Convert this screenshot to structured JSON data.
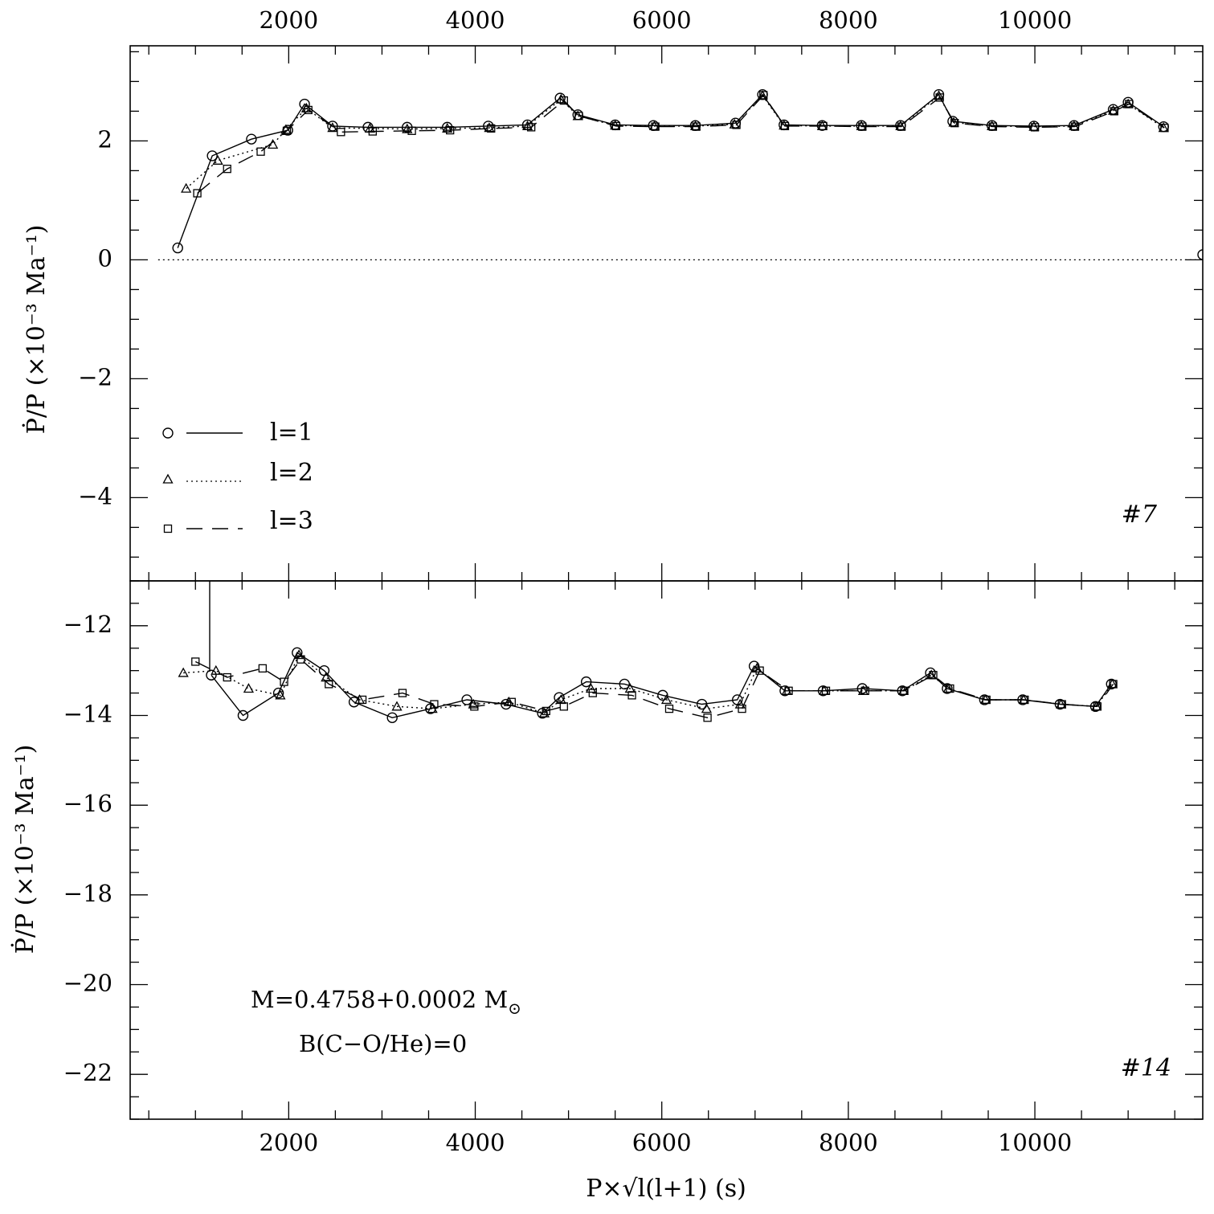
{
  "chart_data": [
    {
      "type": "line",
      "panel": "top",
      "ylabel": "Ṗ/P (×10⁻³ Ma⁻¹)",
      "xlabel": "P×√l(l+1) (s)",
      "xlim": [
        300,
        11800
      ],
      "ylim": [
        -5.4,
        3.6
      ],
      "x_ticks": [
        2000,
        4000,
        6000,
        8000,
        10000
      ],
      "x_tick_labels": [
        "2000",
        "4000",
        "6000",
        "8000",
        "10000"
      ],
      "y_ticks": [
        -4,
        -2,
        0,
        2
      ],
      "y_tick_labels": [
        "−4",
        "−2",
        "0",
        "2"
      ],
      "panel_label": "#7",
      "reference_line": {
        "y": 0,
        "style": "dotted"
      },
      "legend": [
        {
          "marker": "circle",
          "line": "solid",
          "label": "l=1"
        },
        {
          "marker": "triangle",
          "line": "dotted",
          "label": "l=2"
        },
        {
          "marker": "square",
          "line": "dashed",
          "label": "l=3"
        }
      ],
      "series": [
        {
          "name": "l=1",
          "marker": "circle",
          "line": "solid",
          "x": [
            810,
            1180,
            1600,
            1990,
            2170,
            2470,
            2850,
            3270,
            3700,
            4140,
            4560,
            4910,
            5100,
            5500,
            5910,
            6360,
            6790,
            7080,
            7310,
            7720,
            8140,
            8560,
            8970,
            9120,
            9540,
            9990,
            10420,
            10840,
            11000,
            11380
          ],
          "y": [
            0.2,
            1.75,
            2.03,
            2.18,
            2.62,
            2.25,
            2.23,
            2.23,
            2.23,
            2.25,
            2.27,
            2.72,
            2.44,
            2.27,
            2.26,
            2.26,
            2.3,
            2.78,
            2.27,
            2.26,
            2.26,
            2.26,
            2.78,
            2.33,
            2.26,
            2.25,
            2.26,
            2.53,
            2.65,
            2.24
          ]
        },
        {
          "name": "l=2",
          "marker": "triangle",
          "line": "dotted",
          "x": [
            900,
            1240,
            1830,
            1970,
            2190,
            2470,
            2870,
            3270,
            3700,
            4150,
            4560,
            4920,
            5100,
            5500,
            5920,
            6360,
            6780,
            7080,
            7310,
            7720,
            8140,
            8560,
            8970,
            9130,
            9540,
            9990,
            10420,
            10840,
            11000,
            11380
          ],
          "y": [
            1.2,
            1.67,
            1.94,
            2.19,
            2.55,
            2.22,
            2.21,
            2.2,
            2.21,
            2.22,
            2.25,
            2.7,
            2.42,
            2.26,
            2.25,
            2.25,
            2.28,
            2.76,
            2.26,
            2.25,
            2.25,
            2.25,
            2.76,
            2.31,
            2.25,
            2.24,
            2.25,
            2.51,
            2.62,
            2.22
          ]
        },
        {
          "name": "l=3",
          "marker": "square",
          "line": "dashed",
          "x": [
            1020,
            1340,
            1700,
            1980,
            2210,
            2560,
            2900,
            3320,
            3730,
            4170,
            4600,
            4950,
            5110,
            5510,
            5930,
            6370,
            6800,
            7090,
            7320,
            7730,
            8150,
            8570,
            8980,
            9140,
            9550,
            10000,
            10430,
            10850,
            11010,
            11390
          ],
          "y": [
            1.12,
            1.53,
            1.82,
            2.17,
            2.52,
            2.15,
            2.16,
            2.17,
            2.18,
            2.21,
            2.23,
            2.68,
            2.42,
            2.25,
            2.24,
            2.24,
            2.27,
            2.77,
            2.25,
            2.25,
            2.24,
            2.24,
            2.73,
            2.3,
            2.24,
            2.23,
            2.24,
            2.5,
            2.62,
            2.22
          ]
        }
      ]
    },
    {
      "type": "line",
      "panel": "bottom",
      "ylabel": "Ṗ/P (×10⁻³ Ma⁻¹)",
      "xlabel": "P×√l(l+1) (s)",
      "xlim": [
        300,
        11800
      ],
      "ylim": [
        -23.0,
        -11.0
      ],
      "x_ticks": [
        2000,
        4000,
        6000,
        8000,
        10000
      ],
      "x_tick_labels": [
        "2000",
        "4000",
        "6000",
        "8000",
        "10000"
      ],
      "y_ticks": [
        -22,
        -20,
        -18,
        -16,
        -14,
        -12
      ],
      "y_tick_labels": [
        "−22",
        "−20",
        "−18",
        "−16",
        "−14",
        "−12"
      ],
      "panel_label": "#14",
      "annotation_line1": "M=0.4758+0.0002 M",
      "annotation_sun_symbol": "⊙",
      "annotation_line2": "B(C−O/He)=0",
      "series": [
        {
          "name": "l=1",
          "marker": "circle",
          "line": "solid",
          "x": [
            1170,
            1510,
            1890,
            2090,
            2380,
            2700,
            3110,
            3520,
            3910,
            4330,
            4720,
            4900,
            5190,
            5600,
            6010,
            6430,
            6810,
            6990,
            7320,
            7730,
            8150,
            8580,
            8880,
            9060,
            9460,
            9870,
            10270,
            10650,
            10820
          ],
          "y": [
            -13.1,
            -14.0,
            -13.5,
            -12.6,
            -13.0,
            -13.7,
            -14.05,
            -13.85,
            -13.65,
            -13.75,
            -13.95,
            -13.6,
            -13.25,
            -13.3,
            -13.55,
            -13.75,
            -13.65,
            -12.9,
            -13.45,
            -13.45,
            -13.4,
            -13.45,
            -13.05,
            -13.4,
            -13.65,
            -13.65,
            -13.75,
            -13.8,
            -13.3
          ]
        },
        {
          "name": "l=2",
          "marker": "triangle",
          "line": "dotted",
          "x": [
            870,
            1220,
            1570,
            1910,
            2110,
            2400,
            2760,
            3160,
            3540,
            3980,
            4360,
            4740,
            4920,
            5240,
            5660,
            6050,
            6480,
            6840,
            7020,
            7340,
            7740,
            8160,
            8590,
            8890,
            9070,
            9470,
            9880,
            10280,
            10660,
            10830
          ],
          "y": [
            -13.05,
            -13.0,
            -13.4,
            -13.55,
            -12.65,
            -13.15,
            -13.65,
            -13.8,
            -13.85,
            -13.75,
            -13.7,
            -13.95,
            -13.65,
            -13.4,
            -13.4,
            -13.65,
            -13.85,
            -13.75,
            -12.95,
            -13.45,
            -13.45,
            -13.45,
            -13.45,
            -13.1,
            -13.4,
            -13.65,
            -13.65,
            -13.75,
            -13.8,
            -13.3
          ]
        },
        {
          "name": "l=3",
          "marker": "square",
          "line": "dashed",
          "x": [
            1000,
            1340,
            1720,
            1950,
            2130,
            2430,
            2790,
            3220,
            3560,
            3990,
            4390,
            4760,
            4950,
            5260,
            5680,
            6080,
            6490,
            6860,
            7050,
            7360,
            7760,
            8180,
            8600,
            8910,
            9090,
            9480,
            9890,
            10290,
            10670,
            10840
          ],
          "y": [
            -12.8,
            -13.15,
            -12.95,
            -13.25,
            -12.75,
            -13.3,
            -13.65,
            -13.5,
            -13.75,
            -13.8,
            -13.7,
            -13.9,
            -13.8,
            -13.5,
            -13.55,
            -13.85,
            -14.05,
            -13.85,
            -13.0,
            -13.45,
            -13.45,
            -13.45,
            -13.45,
            -13.1,
            -13.4,
            -13.65,
            -13.65,
            -13.75,
            -13.8,
            -13.3
          ]
        }
      ]
    }
  ]
}
